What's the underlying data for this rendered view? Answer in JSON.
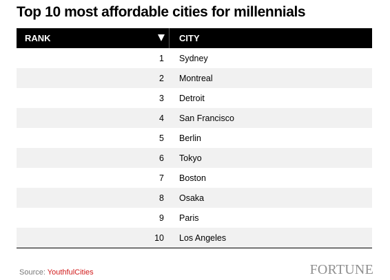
{
  "title": "Top 10 most affordable cities for millennials",
  "table": {
    "headers": {
      "rank": "RANK",
      "city": "CITY"
    },
    "sort_indicator": "sort-descending-triangle"
  },
  "chart_data": {
    "type": "table",
    "title": "Top 10 most affordable cities for millennials",
    "columns": [
      "RANK",
      "CITY"
    ],
    "rows": [
      {
        "rank": "1",
        "city": "Sydney"
      },
      {
        "rank": "2",
        "city": "Montreal"
      },
      {
        "rank": "3",
        "city": "Detroit"
      },
      {
        "rank": "4",
        "city": "San Francisco"
      },
      {
        "rank": "5",
        "city": "Berlin"
      },
      {
        "rank": "6",
        "city": "Tokyo"
      },
      {
        "rank": "7",
        "city": "Boston"
      },
      {
        "rank": "8",
        "city": "Osaka"
      },
      {
        "rank": "9",
        "city": "Paris"
      },
      {
        "rank": "10",
        "city": "Los Angeles"
      }
    ]
  },
  "footer": {
    "source_label": "Source:",
    "source_name": "YouthfulCities",
    "logo_text": "FORTUNE"
  },
  "colors": {
    "header_bg": "#000000",
    "alt_row_bg": "#f1f1f1",
    "source_link": "#d11a1a",
    "logo": "#8f8f8f"
  }
}
